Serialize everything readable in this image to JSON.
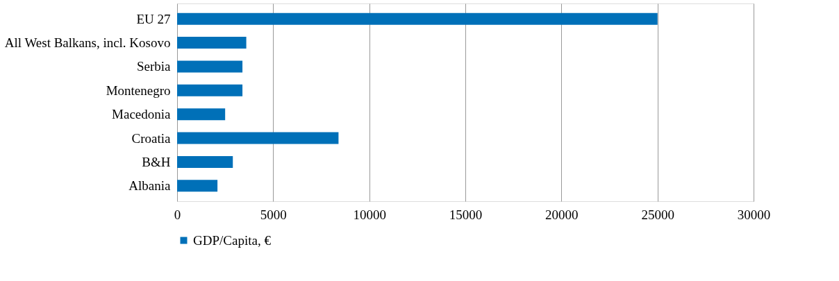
{
  "chart_data": {
    "type": "bar",
    "orientation": "horizontal",
    "categories": [
      "EU 27",
      "All West Balkans, incl. Kosovo",
      "Serbia",
      "Montenegro",
      "Macedonia",
      "Croatia",
      "B&H",
      "Albania"
    ],
    "series": [
      {
        "name": "GDP/Capita, €",
        "color": "#0070b8",
        "values": [
          25000,
          3600,
          3400,
          3400,
          2500,
          8400,
          2900,
          2100
        ]
      }
    ],
    "xlim": [
      0,
      30000
    ],
    "xticks": [
      0,
      5000,
      10000,
      15000,
      20000,
      25000,
      30000
    ],
    "grid": "x",
    "legend": "bottom"
  }
}
